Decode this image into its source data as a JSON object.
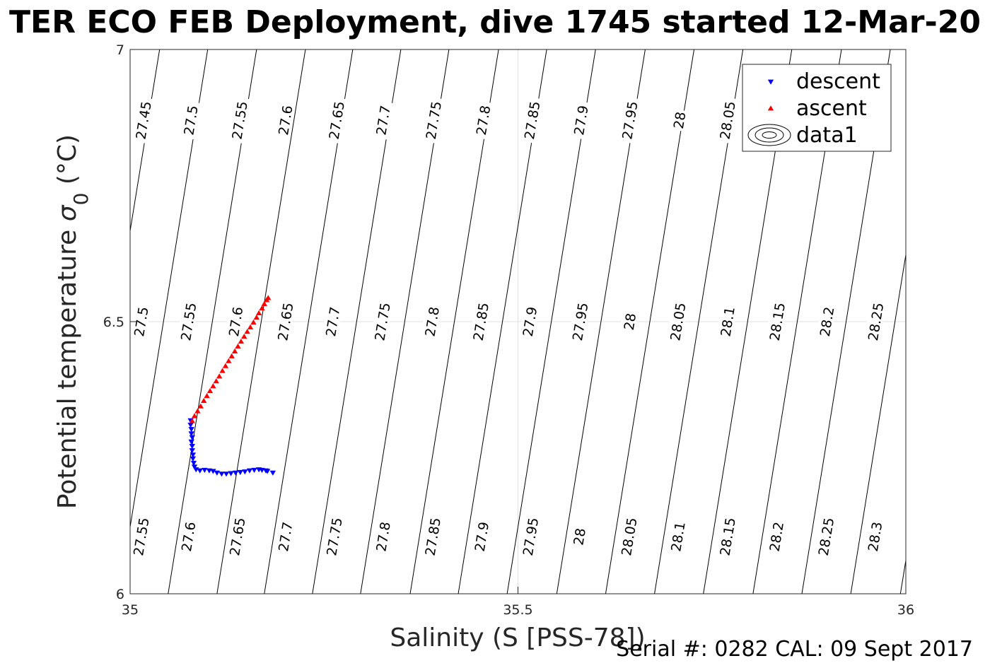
{
  "chart_data": {
    "type": "scatter",
    "title": "TER ECO FEB Deployment, dive 1745 started 12-Mar-20",
    "xlabel": "Salinity (S [PSS-78])",
    "ylabel_main": "Potential temperature ",
    "ylabel_sigma": "σ",
    "ylabel_sub": "0",
    "ylabel_unit": " (°C)",
    "xlim": [
      35,
      36
    ],
    "ylim": [
      6,
      7
    ],
    "x_ticks": [
      35,
      35.5,
      36
    ],
    "x_tick_labels": [
      "35",
      "35.5",
      "36"
    ],
    "y_ticks": [
      6,
      6.5,
      7
    ],
    "y_tick_labels": [
      "6",
      "6.5",
      "7"
    ],
    "grid": true,
    "legend_position": "top-right",
    "series": [
      {
        "name": "descent",
        "marker": "triangle-down",
        "color": "#0000ff",
        "points": [
          [
            35.078,
            6.318
          ],
          [
            35.078,
            6.31
          ],
          [
            35.079,
            6.302
          ],
          [
            35.079,
            6.294
          ],
          [
            35.08,
            6.287
          ],
          [
            35.079,
            6.279
          ],
          [
            35.08,
            6.271
          ],
          [
            35.08,
            6.263
          ],
          [
            35.081,
            6.255
          ],
          [
            35.081,
            6.248
          ],
          [
            35.082,
            6.24
          ],
          [
            35.083,
            6.233
          ],
          [
            35.085,
            6.228
          ],
          [
            35.09,
            6.226
          ],
          [
            35.096,
            6.227
          ],
          [
            35.102,
            6.226
          ],
          [
            35.107,
            6.225
          ],
          [
            35.112,
            6.222
          ],
          [
            35.118,
            6.22
          ],
          [
            35.124,
            6.22
          ],
          [
            35.13,
            6.221
          ],
          [
            35.136,
            6.222
          ],
          [
            35.142,
            6.223
          ],
          [
            35.148,
            6.224
          ],
          [
            35.154,
            6.226
          ],
          [
            35.16,
            6.227
          ],
          [
            35.166,
            6.228
          ],
          [
            35.17,
            6.227
          ],
          [
            35.175,
            6.226
          ],
          [
            35.177,
            6.225
          ]
        ],
        "extra_point": [
          35.174,
          6.222
        ]
      },
      {
        "name": "ascent",
        "marker": "triangle-up",
        "color": "#ff0000",
        "points": [
          [
            35.08,
            6.318
          ],
          [
            35.083,
            6.327
          ],
          [
            35.087,
            6.336
          ],
          [
            35.091,
            6.345
          ],
          [
            35.095,
            6.355
          ],
          [
            35.099,
            6.364
          ],
          [
            35.103,
            6.373
          ],
          [
            35.107,
            6.382
          ],
          [
            35.111,
            6.391
          ],
          [
            35.115,
            6.4
          ],
          [
            35.119,
            6.41
          ],
          [
            35.123,
            6.419
          ],
          [
            35.127,
            6.428
          ],
          [
            35.131,
            6.437
          ],
          [
            35.135,
            6.446
          ],
          [
            35.139,
            6.455
          ],
          [
            35.143,
            6.464
          ],
          [
            35.147,
            6.473
          ],
          [
            35.151,
            6.482
          ],
          [
            35.155,
            6.49
          ],
          [
            35.159,
            6.499
          ],
          [
            35.163,
            6.508
          ],
          [
            35.166,
            6.516
          ],
          [
            35.17,
            6.525
          ],
          [
            35.173,
            6.533
          ],
          [
            35.176,
            6.54
          ],
          [
            35.178,
            6.544
          ]
        ]
      },
      {
        "name": "data1",
        "marker": "contour"
      }
    ],
    "contours": [
      {
        "label": "27.45",
        "top_x": 35.038,
        "label_pos": [
          [
            35.017,
            6.87
          ]
        ]
      },
      {
        "label": "27.5",
        "top_x": 35.1,
        "label_pos": [
          [
            35.078,
            6.87
          ],
          [
            35.014,
            6.5
          ]
        ]
      },
      {
        "label": "27.55",
        "top_x": 35.163,
        "label_pos": [
          [
            35.141,
            6.87
          ],
          [
            35.075,
            6.5
          ],
          [
            35.014,
            6.105
          ]
        ]
      },
      {
        "label": "27.6",
        "top_x": 35.226,
        "label_pos": [
          [
            35.2,
            6.87
          ],
          [
            35.136,
            6.5
          ],
          [
            35.075,
            6.105
          ]
        ]
      },
      {
        "label": "27.65",
        "top_x": 35.287,
        "label_pos": [
          [
            35.266,
            6.87
          ],
          [
            35.2,
            6.5
          ],
          [
            35.138,
            6.105
          ]
        ]
      },
      {
        "label": "27.7",
        "top_x": 35.349,
        "label_pos": [
          [
            35.326,
            6.87
          ],
          [
            35.261,
            6.5
          ],
          [
            35.2,
            6.105
          ]
        ]
      },
      {
        "label": "27.75",
        "top_x": 35.411,
        "label_pos": [
          [
            35.391,
            6.87
          ],
          [
            35.325,
            6.5
          ],
          [
            35.263,
            6.105
          ]
        ]
      },
      {
        "label": "27.8",
        "top_x": 35.475,
        "label_pos": [
          [
            35.455,
            6.87
          ],
          [
            35.389,
            6.5
          ],
          [
            35.326,
            6.105
          ]
        ]
      },
      {
        "label": "27.85",
        "top_x": 35.537,
        "label_pos": [
          [
            35.518,
            6.87
          ],
          [
            35.452,
            6.5
          ],
          [
            35.39,
            6.105
          ]
        ]
      },
      {
        "label": "27.9",
        "top_x": 35.6,
        "label_pos": [
          [
            35.581,
            6.87
          ],
          [
            35.515,
            6.5
          ],
          [
            35.453,
            6.105
          ]
        ]
      },
      {
        "label": "27.95",
        "top_x": 35.664,
        "label_pos": [
          [
            35.644,
            6.87
          ],
          [
            35.58,
            6.5
          ],
          [
            35.516,
            6.105
          ]
        ]
      },
      {
        "label": "28",
        "top_x": 35.727,
        "label_pos": [
          [
            35.708,
            6.87
          ],
          [
            35.644,
            6.5
          ],
          [
            35.579,
            6.105
          ]
        ]
      },
      {
        "label": "28.05",
        "top_x": 35.79,
        "label_pos": [
          [
            35.77,
            6.87
          ],
          [
            35.706,
            6.5
          ],
          [
            35.643,
            6.105
          ]
        ]
      },
      {
        "label": "28.1",
        "top_x": 35.853,
        "label_pos": [
          [
            35.77,
            6.5
          ],
          [
            35.706,
            6.105
          ]
        ]
      },
      {
        "label": "28.15",
        "top_x": 35.917,
        "label_pos": [
          [
            35.834,
            6.5
          ],
          [
            35.77,
            6.105
          ]
        ]
      },
      {
        "label": "28.2",
        "top_x": 35.98,
        "label_pos": [
          [
            35.898,
            6.5
          ],
          [
            35.833,
            6.105
          ]
        ]
      },
      {
        "label": "28.25",
        "top_x": 36.043,
        "label_pos": [
          [
            35.961,
            6.5
          ],
          [
            35.897,
            6.105
          ]
        ]
      },
      {
        "label": "28.3",
        "top_x": 36.107,
        "label_pos": [
          [
            35.96,
            6.105
          ]
        ]
      }
    ],
    "contour_slope_salinity_per_degC": 0.114
  },
  "footer": {
    "serial": "Serial #: 0282  CAL: 09 Sept 2017"
  }
}
